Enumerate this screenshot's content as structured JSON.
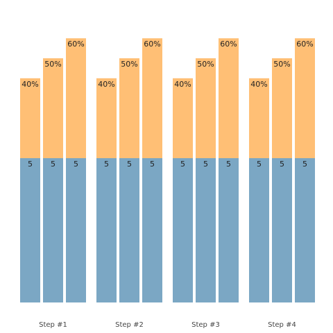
{
  "chart_data": {
    "type": "bar",
    "stacked": true,
    "categories": [
      "Step #1",
      "Step #2",
      "Step #3",
      "Step #4"
    ],
    "bars_per_category": 3,
    "series": [
      {
        "values": [
          [
            5,
            5,
            5
          ],
          [
            5,
            5,
            5
          ],
          [
            5,
            5,
            5
          ],
          [
            5,
            5,
            5
          ]
        ],
        "labels": [
          [
            "5",
            "5",
            "5"
          ],
          [
            "5",
            "5",
            "5"
          ],
          [
            "5",
            "5",
            "5"
          ],
          [
            "5",
            "5",
            "5"
          ]
        ],
        "color": "#7ba7c4"
      },
      {
        "values": [
          [
            40,
            50,
            60
          ],
          [
            40,
            50,
            60
          ],
          [
            40,
            50,
            60
          ],
          [
            40,
            50,
            60
          ]
        ],
        "labels": [
          [
            "40%",
            "50%",
            "60%"
          ],
          [
            "40%",
            "50%",
            "60%"
          ],
          [
            "40%",
            "50%",
            "60%"
          ],
          [
            "40%",
            "50%",
            "60%"
          ]
        ],
        "color": "#ffbf75"
      }
    ],
    "title": "",
    "xlabel": "",
    "ylabel": "",
    "grid": false,
    "legend": "none"
  }
}
